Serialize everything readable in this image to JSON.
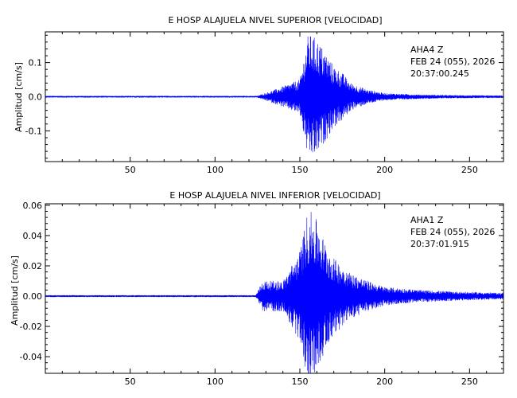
{
  "chart_data": [
    {
      "type": "line",
      "title": "E HOSP ALAJUELA NIVEL SUPERIOR [VELOCIDAD]",
      "xlabel": "",
      "ylabel": "Amplitud [cm/s]",
      "xlim": [
        0,
        270
      ],
      "ylim": [
        -0.19,
        0.19
      ],
      "xticks": [
        50,
        100,
        150,
        200,
        250
      ],
      "yticks": [
        -0.1,
        0.0,
        0.1
      ],
      "ytick_labels": [
        "-0.1",
        "0.0",
        "0.1"
      ],
      "station": "AHA4   Z",
      "date": "FEB 24 (055), 2026",
      "time": "20:37:00.245",
      "series_color": "#0000ff",
      "grid": false,
      "series": [
        {
          "x": [
            0,
            125,
            135,
            150,
            155,
            160,
            165,
            170,
            175,
            180,
            190,
            200,
            220,
            240,
            270
          ],
          "envelope": [
            0.002,
            0.002,
            0.02,
            0.05,
            0.185,
            0.17,
            0.13,
            0.09,
            0.07,
            0.04,
            0.02,
            0.01,
            0.006,
            0.004,
            0.003
          ]
        }
      ]
    },
    {
      "type": "line",
      "title": "E HOSP ALAJUELA NIVEL INFERIOR [VELOCIDAD]",
      "xlabel": "",
      "ylabel": "Amplitud [cm/s]",
      "xlim": [
        0,
        270
      ],
      "ylim": [
        -0.051,
        0.061
      ],
      "xticks": [
        50,
        100,
        150,
        200,
        250
      ],
      "yticks": [
        -0.04,
        -0.02,
        0.0,
        0.02,
        0.04,
        0.06
      ],
      "ytick_labels": [
        "-0.04",
        "-0.02",
        "0.00",
        "0.02",
        "0.04",
        "0.06"
      ],
      "station": "AHA1   Z",
      "date": "FEB 24 (055), 2026",
      "time": "20:37:01.915",
      "series_color": "#0000ff",
      "grid": false,
      "series": [
        {
          "x": [
            0,
            124,
            128,
            140,
            150,
            155,
            160,
            165,
            170,
            180,
            190,
            200,
            220,
            240,
            270
          ],
          "envelope": [
            0.0005,
            0.0005,
            0.01,
            0.01,
            0.03,
            0.058,
            0.05,
            0.035,
            0.025,
            0.015,
            0.01,
            0.006,
            0.004,
            0.003,
            0.002
          ]
        }
      ]
    }
  ]
}
